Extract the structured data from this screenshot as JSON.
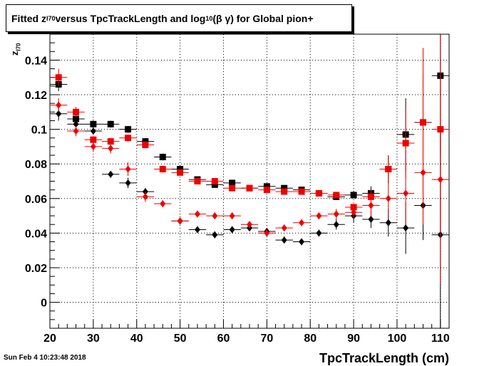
{
  "chart_data": {
    "type": "scatter",
    "title_parts": {
      "a": "Fitted  z",
      "a_sub": "I70",
      "b": "  versus TpcTrackLength and log",
      "b_sub": "10",
      "c": " (β γ) for Global pion+"
    },
    "xlabel": "TpcTrackLength (cm)",
    "ylabel_main": "z",
    "ylabel_sub": "I70",
    "xlim": [
      20,
      112
    ],
    "ylim": [
      -0.015,
      0.155
    ],
    "x_ticks": [
      20,
      30,
      40,
      50,
      60,
      70,
      80,
      90,
      100,
      110
    ],
    "y_ticks": [
      0,
      0.02,
      0.04,
      0.06,
      0.08,
      0.1,
      0.12,
      0.14
    ],
    "y_tick_labels": [
      "0",
      "0.02",
      "0.04",
      "0.06",
      "0.08",
      "0.1",
      "0.12",
      "0.14"
    ],
    "grid": true,
    "series": [
      {
        "color": "#000000",
        "marker": "square",
        "points": [
          {
            "x": 22,
            "y": 0.126,
            "err": 0.004
          },
          {
            "x": 26,
            "y": 0.106,
            "err": 0.003
          },
          {
            "x": 30,
            "y": 0.103,
            "err": 0.002
          },
          {
            "x": 34,
            "y": 0.103,
            "err": 0.002
          },
          {
            "x": 38,
            "y": 0.1,
            "err": 0.002
          },
          {
            "x": 42,
            "y": 0.093,
            "err": 0.002
          },
          {
            "x": 46,
            "y": 0.084,
            "err": 0.002
          },
          {
            "x": 50,
            "y": 0.077,
            "err": 0.001
          },
          {
            "x": 54,
            "y": 0.071,
            "err": 0.001
          },
          {
            "x": 58,
            "y": 0.068,
            "err": 0.001
          },
          {
            "x": 62,
            "y": 0.069,
            "err": 0.001
          },
          {
            "x": 66,
            "y": 0.066,
            "err": 0.001
          },
          {
            "x": 70,
            "y": 0.067,
            "err": 0.001
          },
          {
            "x": 74,
            "y": 0.066,
            "err": 0.001
          },
          {
            "x": 78,
            "y": 0.065,
            "err": 0.001
          },
          {
            "x": 82,
            "y": 0.063,
            "err": 0.001
          },
          {
            "x": 86,
            "y": 0.061,
            "err": 0.001
          },
          {
            "x": 90,
            "y": 0.062,
            "err": 0.002
          },
          {
            "x": 94,
            "y": 0.063,
            "err": 0.004
          },
          {
            "x": 98,
            "y": 0.077,
            "err": 0.008
          },
          {
            "x": 102,
            "y": 0.097,
            "err": 0.021
          },
          {
            "x": 106,
            "y": 0.104,
            "err": 0.028
          },
          {
            "x": 110,
            "y": 0.131,
            "err": 0.046
          }
        ]
      },
      {
        "color": "#ee0000",
        "marker": "square",
        "points": [
          {
            "x": 22,
            "y": 0.13,
            "err": 0.005
          },
          {
            "x": 26,
            "y": 0.11,
            "err": 0.003
          },
          {
            "x": 30,
            "y": 0.094,
            "err": 0.002
          },
          {
            "x": 34,
            "y": 0.093,
            "err": 0.002
          },
          {
            "x": 38,
            "y": 0.095,
            "err": 0.002
          },
          {
            "x": 42,
            "y": 0.091,
            "err": 0.002
          },
          {
            "x": 46,
            "y": 0.077,
            "err": 0.002
          },
          {
            "x": 50,
            "y": 0.075,
            "err": 0.001
          },
          {
            "x": 54,
            "y": 0.07,
            "err": 0.001
          },
          {
            "x": 58,
            "y": 0.07,
            "err": 0.001
          },
          {
            "x": 62,
            "y": 0.066,
            "err": 0.001
          },
          {
            "x": 66,
            "y": 0.066,
            "err": 0.001
          },
          {
            "x": 70,
            "y": 0.065,
            "err": 0.001
          },
          {
            "x": 74,
            "y": 0.064,
            "err": 0.001
          },
          {
            "x": 78,
            "y": 0.064,
            "err": 0.001
          },
          {
            "x": 82,
            "y": 0.063,
            "err": 0.001
          },
          {
            "x": 86,
            "y": 0.062,
            "err": 0.001
          },
          {
            "x": 90,
            "y": 0.055,
            "err": 0.002
          },
          {
            "x": 94,
            "y": 0.061,
            "err": 0.004
          },
          {
            "x": 98,
            "y": 0.077,
            "err": 0.008
          },
          {
            "x": 102,
            "y": 0.092,
            "err": 0.02
          },
          {
            "x": 106,
            "y": 0.104,
            "err": 0.043
          },
          {
            "x": 110,
            "y": 0.1,
            "err": 0.06
          }
        ]
      },
      {
        "color": "#000000",
        "marker": "diamond",
        "points": [
          {
            "x": 22,
            "y": 0.109,
            "err": 0.004
          },
          {
            "x": 26,
            "y": 0.103,
            "err": 0.003
          },
          {
            "x": 30,
            "y": 0.099,
            "err": 0.002
          },
          {
            "x": 34,
            "y": 0.074,
            "err": 0.002
          },
          {
            "x": 38,
            "y": 0.069,
            "err": 0.003
          },
          {
            "x": 42,
            "y": 0.064,
            "err": 0.002
          },
          {
            "x": 50,
            "y": 0.047,
            "err": 0.002
          },
          {
            "x": 54,
            "y": 0.042,
            "err": 0.002
          },
          {
            "x": 58,
            "y": 0.039,
            "err": 0.002
          },
          {
            "x": 62,
            "y": 0.042,
            "err": 0.002
          },
          {
            "x": 66,
            "y": 0.043,
            "err": 0.002
          },
          {
            "x": 70,
            "y": 0.041,
            "err": 0.002
          },
          {
            "x": 74,
            "y": 0.036,
            "err": 0.002
          },
          {
            "x": 78,
            "y": 0.035,
            "err": 0.002
          },
          {
            "x": 82,
            "y": 0.04,
            "err": 0.002
          },
          {
            "x": 86,
            "y": 0.045,
            "err": 0.003
          },
          {
            "x": 90,
            "y": 0.05,
            "err": 0.004
          },
          {
            "x": 94,
            "y": 0.048,
            "err": 0.005
          },
          {
            "x": 98,
            "y": 0.046,
            "err": 0.008
          },
          {
            "x": 102,
            "y": 0.043,
            "err": 0.015
          },
          {
            "x": 106,
            "y": 0.056,
            "err": 0.02
          },
          {
            "x": 110,
            "y": 0.039,
            "err": 0.06
          }
        ]
      },
      {
        "color": "#ee0000",
        "marker": "diamond",
        "points": [
          {
            "x": 22,
            "y": 0.114,
            "err": 0.004
          },
          {
            "x": 26,
            "y": 0.099,
            "err": 0.003
          },
          {
            "x": 30,
            "y": 0.09,
            "err": 0.003
          },
          {
            "x": 34,
            "y": 0.089,
            "err": 0.003
          },
          {
            "x": 38,
            "y": 0.077,
            "err": 0.004
          },
          {
            "x": 42,
            "y": 0.061,
            "err": 0.003
          },
          {
            "x": 46,
            "y": 0.057,
            "err": 0.002
          },
          {
            "x": 50,
            "y": 0.047,
            "err": 0.002
          },
          {
            "x": 54,
            "y": 0.051,
            "err": 0.002
          },
          {
            "x": 58,
            "y": 0.05,
            "err": 0.002
          },
          {
            "x": 62,
            "y": 0.05,
            "err": 0.002
          },
          {
            "x": 66,
            "y": 0.045,
            "err": 0.002
          },
          {
            "x": 70,
            "y": 0.04,
            "err": 0.002
          },
          {
            "x": 74,
            "y": 0.043,
            "err": 0.002
          },
          {
            "x": 78,
            "y": 0.046,
            "err": 0.002
          },
          {
            "x": 82,
            "y": 0.05,
            "err": 0.002
          },
          {
            "x": 86,
            "y": 0.051,
            "err": 0.003
          },
          {
            "x": 90,
            "y": 0.052,
            "err": 0.004
          },
          {
            "x": 94,
            "y": 0.056,
            "err": 0.006
          },
          {
            "x": 98,
            "y": 0.06,
            "err": 0.01
          },
          {
            "x": 102,
            "y": 0.063,
            "err": 0.018
          },
          {
            "x": 106,
            "y": 0.075,
            "err": 0.03
          },
          {
            "x": 110,
            "y": 0.071,
            "err": 0.06
          }
        ]
      }
    ]
  },
  "footer": {
    "timestamp": "Sun Feb  4 10:23:48 2018"
  }
}
